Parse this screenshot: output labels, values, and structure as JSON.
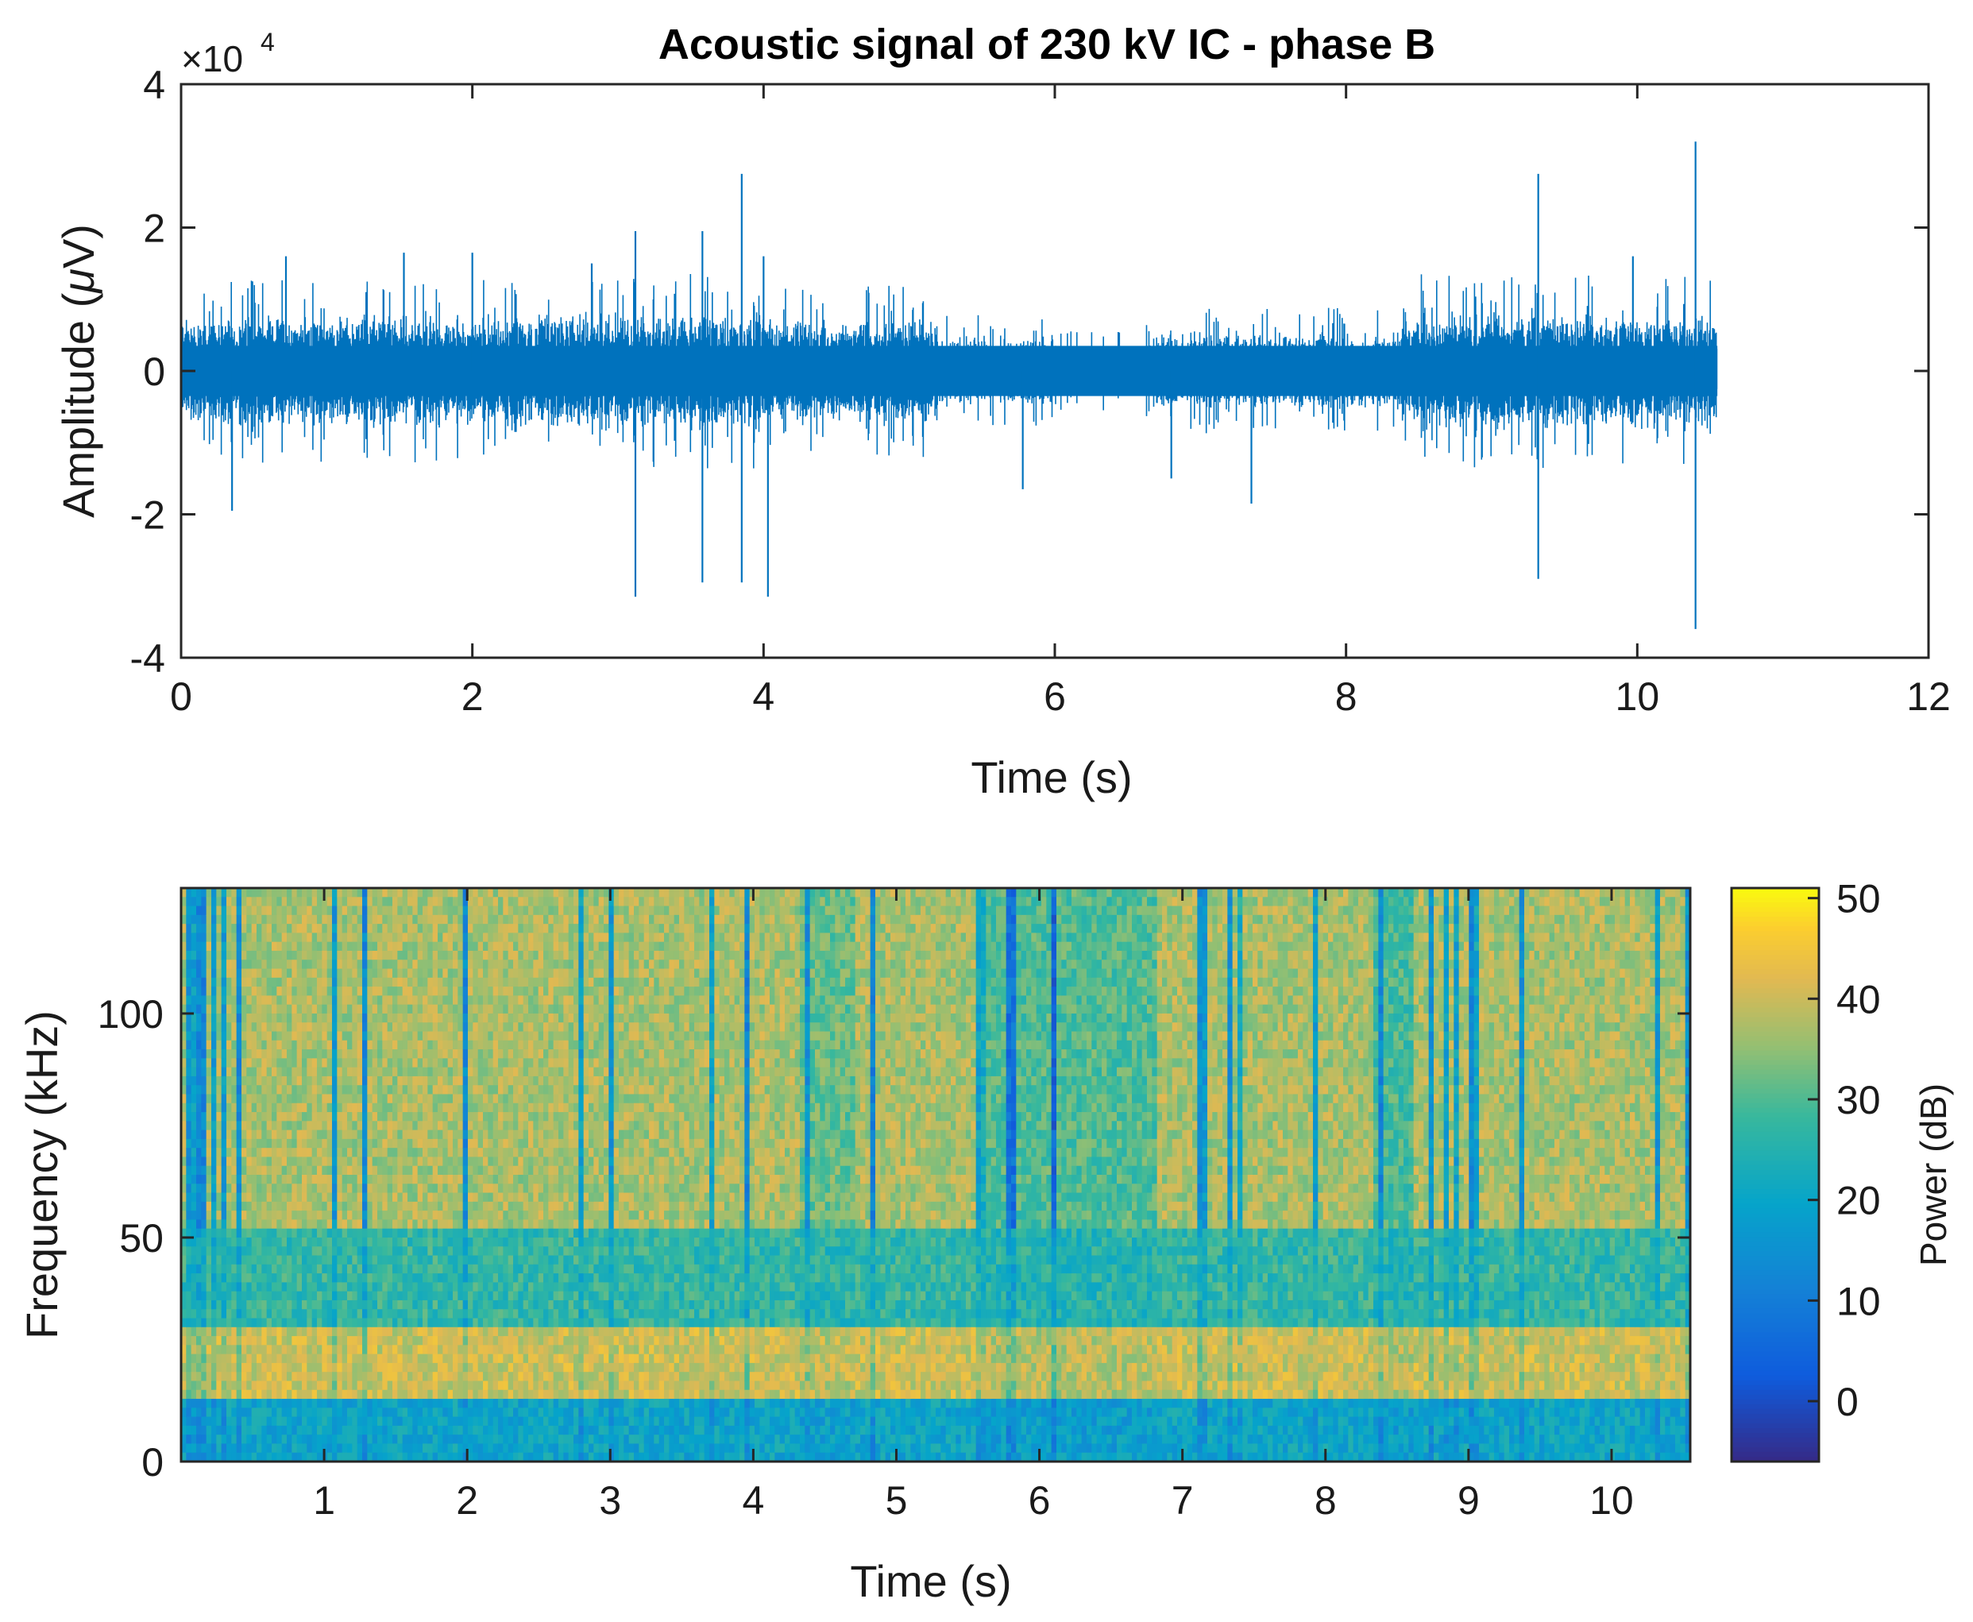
{
  "chart_data": [
    {
      "type": "line",
      "title": "Acoustic signal of 230 kV IC - phase B",
      "xlabel": "Time (s)",
      "ylabel": "Amplitude (μV)",
      "ylabel_main": "Amplitude (",
      "ylabel_mu": "μ",
      "ylabel_unit": "V)",
      "y_multiplier_base": "×10",
      "y_multiplier_exp": "4",
      "xlim": [
        0,
        12
      ],
      "ylim": [
        -4,
        4
      ],
      "y_scale": 10000,
      "xticks": [
        0,
        2,
        4,
        6,
        8,
        10,
        12
      ],
      "xtick_labels": [
        "0",
        "2",
        "4",
        "6",
        "8",
        "10",
        "12"
      ],
      "yticks": [
        -4,
        -2,
        0,
        2,
        4
      ],
      "ytick_labels": [
        "-4",
        "-2",
        "0",
        "2",
        "4"
      ],
      "signal_end_s": 10.55,
      "series_color": "#0072BD",
      "envelope_segments": [
        {
          "t0": 0.0,
          "t1": 1.2,
          "amp": 0.8
        },
        {
          "t0": 1.2,
          "t1": 2.5,
          "amp": 0.8
        },
        {
          "t0": 2.5,
          "t1": 4.0,
          "amp": 0.85
        },
        {
          "t0": 4.0,
          "t1": 5.2,
          "amp": 0.75
        },
        {
          "t0": 5.2,
          "t1": 6.0,
          "amp": 0.5
        },
        {
          "t0": 6.0,
          "t1": 6.6,
          "amp": 0.35
        },
        {
          "t0": 6.6,
          "t1": 8.4,
          "amp": 0.55
        },
        {
          "t0": 8.4,
          "t1": 10.55,
          "amp": 0.85
        }
      ],
      "spikes": [
        {
          "t": 0.35,
          "y": -1.95
        },
        {
          "t": 0.72,
          "y": 1.6
        },
        {
          "t": 1.53,
          "y": 1.65
        },
        {
          "t": 2.0,
          "y": 1.65
        },
        {
          "t": 2.82,
          "y": 1.5
        },
        {
          "t": 3.12,
          "y": 1.95
        },
        {
          "t": 3.12,
          "y": -3.15
        },
        {
          "t": 3.58,
          "y": 1.95
        },
        {
          "t": 3.58,
          "y": -2.95
        },
        {
          "t": 3.85,
          "y": 2.75
        },
        {
          "t": 3.85,
          "y": -2.95
        },
        {
          "t": 4.0,
          "y": 1.6
        },
        {
          "t": 4.03,
          "y": -3.15
        },
        {
          "t": 5.78,
          "y": -1.65
        },
        {
          "t": 6.8,
          "y": -1.5
        },
        {
          "t": 7.35,
          "y": -1.85
        },
        {
          "t": 9.32,
          "y": 2.75
        },
        {
          "t": 9.32,
          "y": -2.9
        },
        {
          "t": 9.97,
          "y": 1.6
        },
        {
          "t": 10.4,
          "y": 3.2
        },
        {
          "t": 10.4,
          "y": -3.6
        }
      ]
    },
    {
      "type": "heatmap",
      "xlabel": "Time (s)",
      "ylabel": "Frequency (kHz)",
      "colorbar_label": "Power (dB)",
      "xlim": [
        0,
        10.55
      ],
      "ylim": [
        0,
        128
      ],
      "xticks": [
        1,
        2,
        3,
        4,
        5,
        6,
        7,
        8,
        9,
        10
      ],
      "xtick_labels": [
        "1",
        "2",
        "3",
        "4",
        "5",
        "6",
        "7",
        "8",
        "9",
        "10"
      ],
      "yticks": [
        0,
        50,
        100
      ],
      "ytick_labels": [
        "0",
        "50",
        "100"
      ],
      "clim": [
        -6,
        51
      ],
      "cticks": [
        0,
        10,
        20,
        30,
        40,
        50
      ],
      "ctick_labels": [
        "0",
        "10",
        "20",
        "30",
        "40",
        "50"
      ],
      "colormap": "parula",
      "frequency_bands": [
        {
          "f0": 0,
          "f1": 15,
          "db": 20
        },
        {
          "f0": 15,
          "f1": 30,
          "db": 40
        },
        {
          "f0": 30,
          "f1": 52,
          "db": 27
        },
        {
          "f0": 52,
          "f1": 128,
          "db": 37
        }
      ]
    }
  ]
}
